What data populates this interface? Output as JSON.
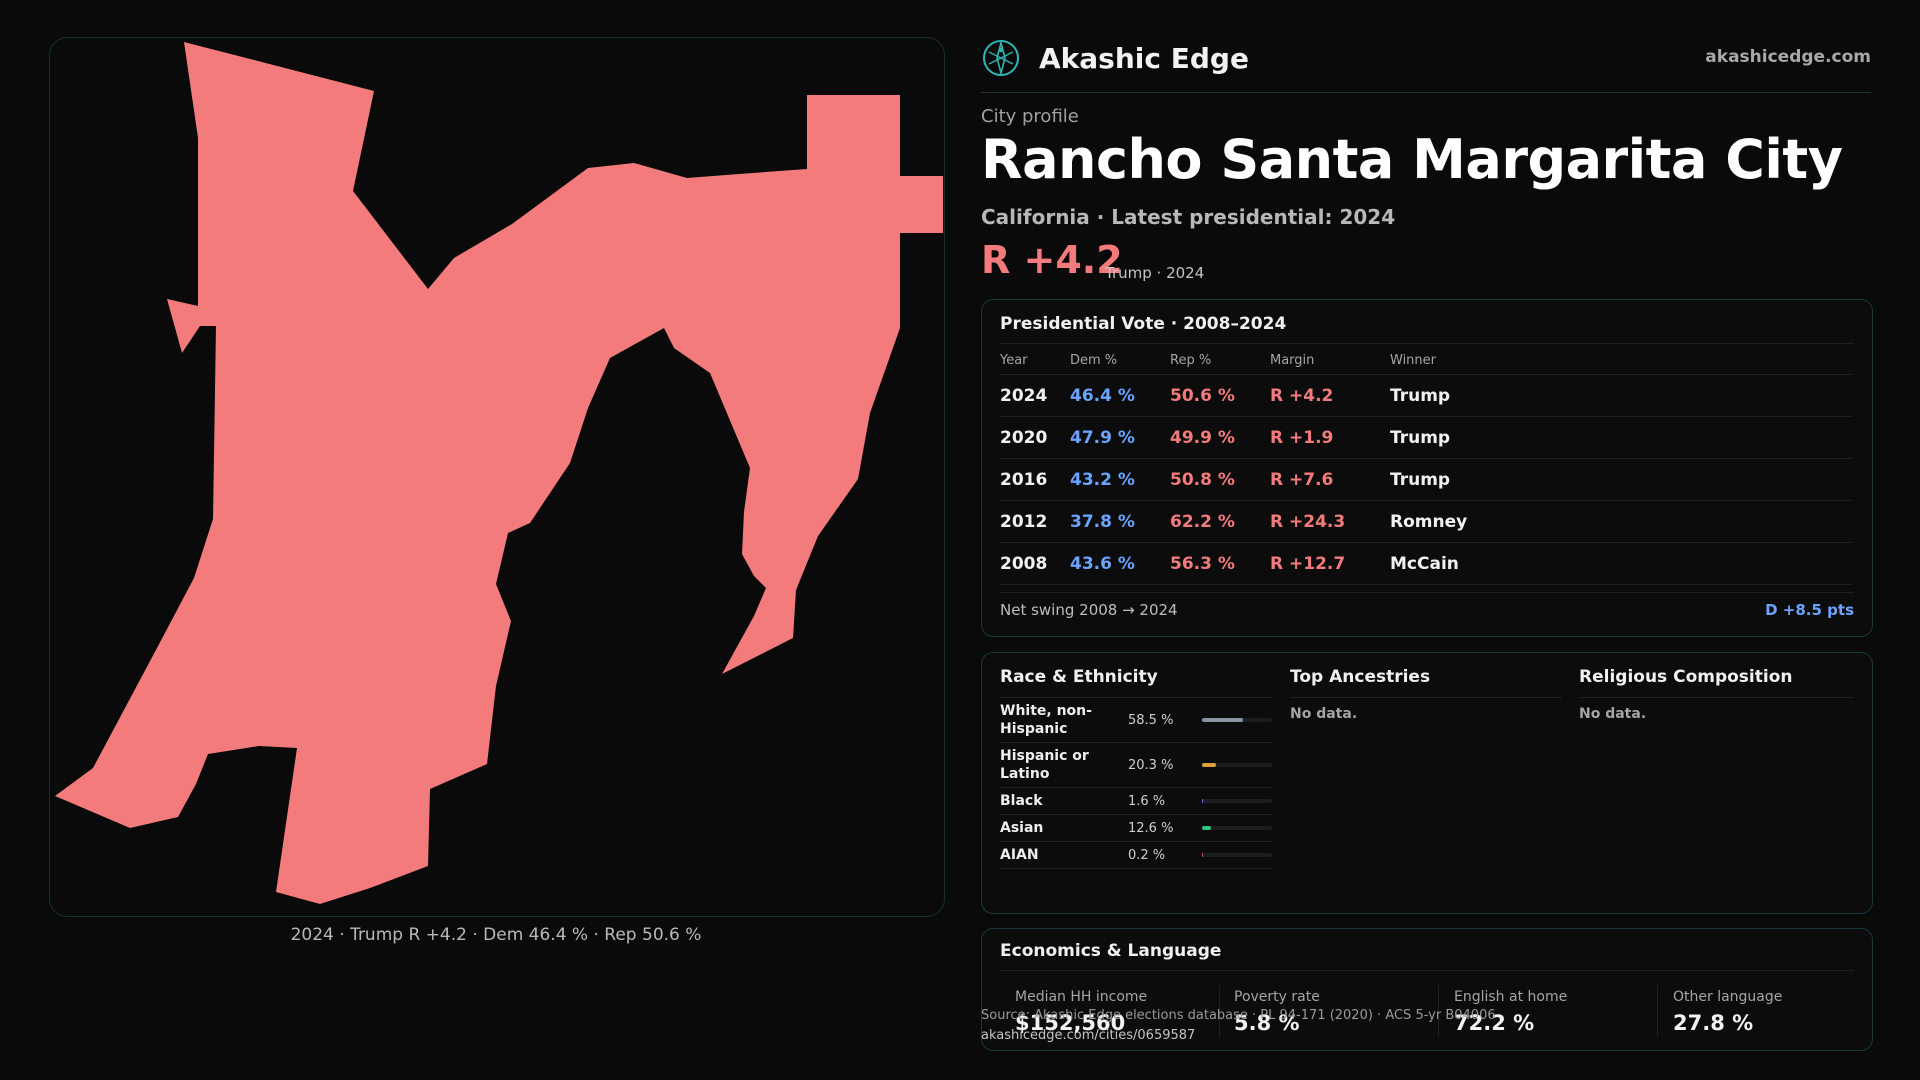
{
  "brand": {
    "name": "Akashic Edge",
    "url": "akashicedge.com",
    "logo_icon": "compass-globe-icon",
    "accent": "#2fb8b3"
  },
  "header": {
    "eyebrow": "City profile",
    "city": "Rancho Santa Margarita City",
    "subtitle": "California · Latest presidential: 2024",
    "margin": "R +4.2",
    "margin_note": "Trump · 2024",
    "margin_color": "#f47b7b"
  },
  "map": {
    "fill_color": "#f47b7b",
    "caption": "2024 · Trump R +4.2 · Dem 46.4 % · Rep 50.6 %"
  },
  "votes": {
    "title": "Presidential Vote · 2008–2024",
    "columns": [
      "Year",
      "Dem %",
      "Rep %",
      "Margin",
      "Winner"
    ],
    "rows": [
      {
        "year": "2024",
        "dem": "46.4 %",
        "rep": "50.6 %",
        "margin": "R +4.2",
        "winner": "Trump"
      },
      {
        "year": "2020",
        "dem": "47.9 %",
        "rep": "49.9 %",
        "margin": "R +1.9",
        "winner": "Trump"
      },
      {
        "year": "2016",
        "dem": "43.2 %",
        "rep": "50.8 %",
        "margin": "R +7.6",
        "winner": "Trump"
      },
      {
        "year": "2012",
        "dem": "37.8 %",
        "rep": "62.2 %",
        "margin": "R +24.3",
        "winner": "Romney"
      },
      {
        "year": "2008",
        "dem": "43.6 %",
        "rep": "56.3 %",
        "margin": "R +12.7",
        "winner": "McCain"
      }
    ],
    "swing_label": "Net swing 2008 → 2024",
    "swing_value": "D +8.5 pts",
    "dem_color": "#6aa4ff",
    "rep_color": "#f47b7b"
  },
  "race": {
    "title": "Race & Ethnicity",
    "rows": [
      {
        "label": "White, non-Hispanic",
        "pct": "58.5 %",
        "value": 58.5,
        "color": "#8a93a3"
      },
      {
        "label": "Hispanic or Latino",
        "pct": "20.3 %",
        "value": 20.3,
        "color": "#e0a03a"
      },
      {
        "label": "Black",
        "pct": "1.6 %",
        "value": 1.6,
        "color": "#7b6cf0"
      },
      {
        "label": "Asian",
        "pct": "12.6 %",
        "value": 12.6,
        "color": "#2fc27b"
      },
      {
        "label": "AIAN",
        "pct": "0.2 %",
        "value": 0.2,
        "color": "#c24a4a"
      }
    ]
  },
  "ancestries": {
    "title": "Top Ancestries",
    "empty": "No data."
  },
  "religion": {
    "title": "Religious Composition",
    "empty": "No data."
  },
  "economics": {
    "title": "Economics & Language",
    "stats": [
      {
        "label": "Median HH income",
        "value": "$152,560"
      },
      {
        "label": "Poverty rate",
        "value": "5.8 %"
      },
      {
        "label": "English at home",
        "value": "72.2 %"
      },
      {
        "label": "Other language",
        "value": "27.8 %"
      }
    ]
  },
  "footer": {
    "source": "Source: Akashic Edge elections database · PL 94-171 (2020) · ACS 5-yr B04006",
    "url": "akashicedge.com/cities/0659587"
  }
}
